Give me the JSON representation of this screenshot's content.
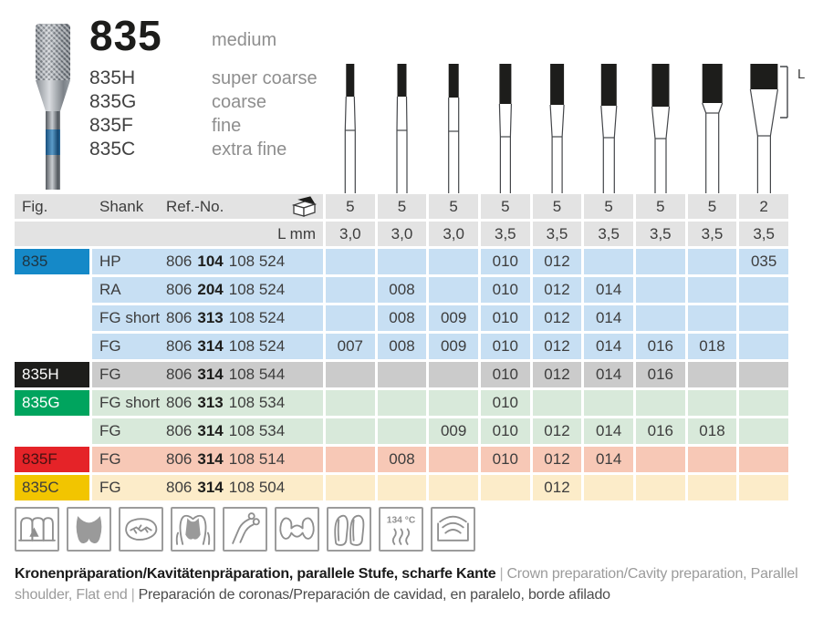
{
  "product": {
    "main_code": "835",
    "main_grit": "medium",
    "variants": [
      {
        "code": "835H",
        "grit": "super coarse"
      },
      {
        "code": "835G",
        "grit": "coarse"
      },
      {
        "code": "835F",
        "grit": "fine"
      },
      {
        "code": "835C",
        "grit": "extra fine"
      }
    ]
  },
  "diagram": {
    "length_label": "L"
  },
  "table": {
    "headers": {
      "fig": "Fig.",
      "shank": "Shank",
      "ref": "Ref.-No.",
      "pack_icon": "package-box-icon",
      "length_row_label": "L mm"
    },
    "pack_counts": [
      "5",
      "5",
      "5",
      "5",
      "5",
      "5",
      "5",
      "5",
      "2"
    ],
    "lengths_mm": [
      "3,0",
      "3,0",
      "3,0",
      "3,5",
      "3,5",
      "3,5",
      "3,5",
      "3,5",
      "3,5"
    ],
    "rows": [
      {
        "fig": "835",
        "fig_bg": "#1589c8",
        "fig_color": "#1f3440",
        "row_bg": "#c7dff3",
        "shank": "HP",
        "ref_a": "806",
        "ref_b": "104",
        "ref_c": "108 524",
        "sizes": [
          "",
          "",
          "",
          "010",
          "012",
          "",
          "",
          "",
          "035"
        ]
      },
      {
        "fig": "",
        "fig_bg": "",
        "fig_color": "",
        "row_bg": "#c7dff3",
        "shank": "RA",
        "ref_a": "806",
        "ref_b": "204",
        "ref_c": "108 524",
        "sizes": [
          "",
          "008",
          "",
          "010",
          "012",
          "014",
          "",
          "",
          ""
        ]
      },
      {
        "fig": "",
        "fig_bg": "",
        "fig_color": "",
        "row_bg": "#c7dff3",
        "shank": "FG short",
        "ref_a": "806",
        "ref_b": "313",
        "ref_c": "108 524",
        "sizes": [
          "",
          "008",
          "009",
          "010",
          "012",
          "014",
          "",
          "",
          ""
        ]
      },
      {
        "fig": "",
        "fig_bg": "",
        "fig_color": "",
        "row_bg": "#c7dff3",
        "shank": "FG",
        "ref_a": "806",
        "ref_b": "314",
        "ref_c": "108 524",
        "sizes": [
          "007",
          "008",
          "009",
          "010",
          "012",
          "014",
          "016",
          "018",
          ""
        ]
      },
      {
        "fig": "835H",
        "fig_bg": "#1d1d1b",
        "fig_color": "#ffffff",
        "row_bg": "#cbcbcb",
        "shank": "FG",
        "ref_a": "806",
        "ref_b": "314",
        "ref_c": "108 544",
        "sizes": [
          "",
          "",
          "",
          "010",
          "012",
          "014",
          "016",
          "",
          ""
        ]
      },
      {
        "fig": "835G",
        "fig_bg": "#00a45e",
        "fig_color": "#ffffff",
        "row_bg": "#d8e9da",
        "shank": "FG short",
        "ref_a": "806",
        "ref_b": "313",
        "ref_c": "108 534",
        "sizes": [
          "",
          "",
          "",
          "010",
          "",
          "",
          "",
          "",
          ""
        ]
      },
      {
        "fig": "",
        "fig_bg": "",
        "fig_color": "",
        "row_bg": "#d8e9da",
        "shank": "FG",
        "ref_a": "806",
        "ref_b": "314",
        "ref_c": "108 534",
        "sizes": [
          "",
          "",
          "009",
          "010",
          "012",
          "014",
          "016",
          "018",
          ""
        ]
      },
      {
        "fig": "835F",
        "fig_bg": "#e52328",
        "fig_color": "#451111",
        "row_bg": "#f7c8b6",
        "shank": "FG",
        "ref_a": "806",
        "ref_b": "314",
        "ref_c": "108 514",
        "sizes": [
          "",
          "008",
          "",
          "010",
          "012",
          "014",
          "",
          "",
          ""
        ]
      },
      {
        "fig": "835C",
        "fig_bg": "#f2c500",
        "fig_color": "#3d3d3d",
        "row_bg": "#fcecc9",
        "shank": "FG",
        "ref_a": "806",
        "ref_b": "314",
        "ref_c": "108 504",
        "sizes": [
          "",
          "",
          "",
          "",
          "012",
          "",
          "",
          "",
          ""
        ]
      }
    ]
  },
  "icon_strip": [
    {
      "name": "anterior-teeth-preparation-icon"
    },
    {
      "name": "cavity-preparation-icon"
    },
    {
      "name": "occlusal-surface-icon"
    },
    {
      "name": "crown-preparation-molar-icon"
    },
    {
      "name": "clasp-removal-icon"
    },
    {
      "name": "bridge-icon"
    },
    {
      "name": "veneer-crowns-icon"
    },
    {
      "name": "autoclave-134c-icon",
      "label": "134 °C"
    },
    {
      "name": "thermal-disinfector-icon"
    }
  ],
  "footer": {
    "german": "Kronenpräparation/Kavitätenpräparation, parallele Stufe, scharfe Kante",
    "separator": "|",
    "english": "Crown preparation/Cavity preparation, Parallel shoulder, Flat end",
    "spanish": "Preparación de coronas/Preparación de cavidad, en paralelo, borde afilado"
  },
  "colors": {
    "grit_medium_blue": "#1589c8",
    "grit_super_coarse_black": "#1d1d1b",
    "grit_coarse_green": "#00a45e",
    "grit_fine_red": "#e52328",
    "grit_extra_fine_yellow": "#f2c500"
  }
}
